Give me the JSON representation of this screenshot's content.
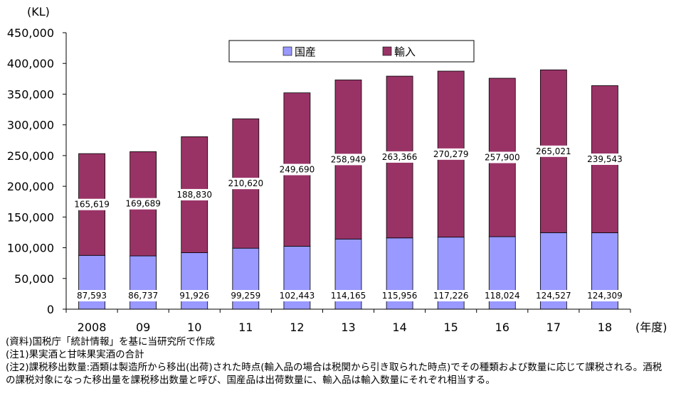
{
  "chart_data": {
    "type": "bar",
    "stacked": true,
    "categories": [
      "2008",
      "09",
      "10",
      "11",
      "12",
      "13",
      "14",
      "15",
      "16",
      "17",
      "18"
    ],
    "series": [
      {
        "name": "国産",
        "color": "#9999ff",
        "values": [
          87593,
          86737,
          91926,
          99259,
          102443,
          114165,
          115956,
          117226,
          118024,
          124527,
          124309
        ],
        "labels": [
          "87,593",
          "86,737",
          "91,926",
          "99,259",
          "102,443",
          "114,165",
          "115,956",
          "117,226",
          "118,024",
          "124,527",
          "124,309"
        ]
      },
      {
        "name": "輸入",
        "color": "#993366",
        "values": [
          165619,
          169689,
          188830,
          210620,
          249690,
          258949,
          263366,
          270279,
          257900,
          265021,
          239543
        ],
        "labels": [
          "165,619",
          "169,689",
          "188,830",
          "210,620",
          "249,690",
          "258,949",
          "263,366",
          "270,279",
          "257,900",
          "265,021",
          "239,543"
        ]
      }
    ],
    "ylim": [
      0,
      450000
    ],
    "yticks": [
      0,
      50000,
      100000,
      150000,
      200000,
      250000,
      300000,
      350000,
      400000,
      450000
    ],
    "ytick_labels": [
      "0",
      "50,000",
      "100,000",
      "150,000",
      "200,000",
      "250,000",
      "300,000",
      "350,000",
      "400,000",
      "450,000"
    ],
    "yunit": "(KL)",
    "xunit": "(年度)",
    "legend_position": "top"
  },
  "notes": [
    "(資料)国税庁「統計情報」を基に当研究所で作成",
    "(注1)果実酒と甘味果実酒の合計",
    "(注2)課税移出数量:酒類は製造所から移出(出荷)された時点(輸入品の場合は税関から引き取られた時点)でその種類および数量に応じて課税される。酒税の課税対象になった移出量を課税移出数量と呼び、国産品は出荷数量に、輸入品は輸入数量にそれぞれ相当する。"
  ]
}
